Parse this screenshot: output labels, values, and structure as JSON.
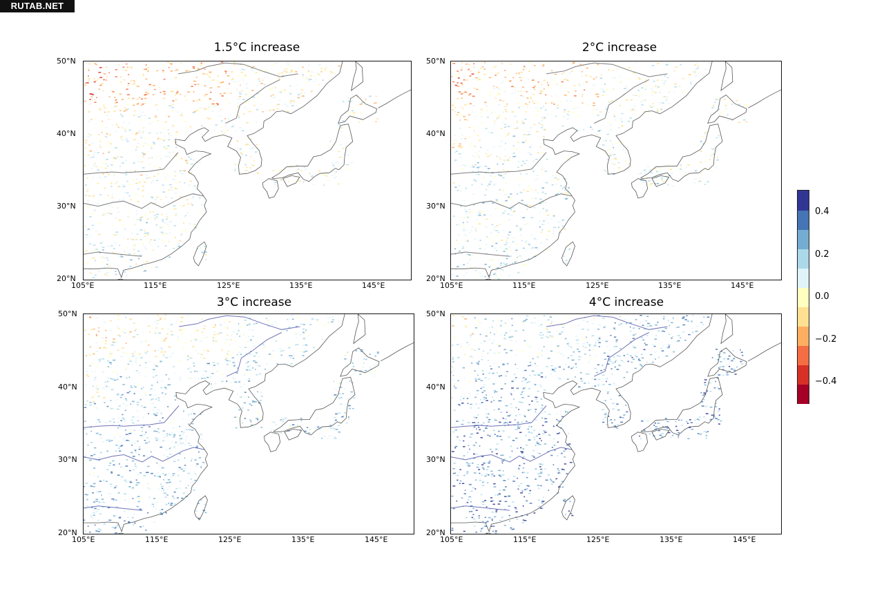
{
  "watermark": "RUTAB.NET",
  "panels": [
    {
      "title": "1.5°C increase",
      "intensity": 1.5
    },
    {
      "title": "2°C increase",
      "intensity": 2
    },
    {
      "title": "3°C increase",
      "intensity": 3
    },
    {
      "title": "4°C increase",
      "intensity": 4
    }
  ],
  "axes": {
    "lon_labels": [
      "105°E",
      "115°E",
      "125°E",
      "135°E",
      "145°E"
    ],
    "lon_values": [
      105,
      115,
      125,
      135,
      145
    ],
    "lat_labels": [
      "50°N",
      "40°N",
      "30°N",
      "20°N"
    ],
    "lat_values": [
      50,
      40,
      30,
      20
    ],
    "lon_range": [
      105,
      150
    ],
    "lat_range": [
      20,
      50
    ]
  },
  "colorbar": {
    "labels": [
      "0.4",
      "0.2",
      "0.0",
      "−0.2",
      "−0.4"
    ],
    "label_values": [
      0.4,
      0.2,
      0.0,
      -0.2,
      -0.4
    ],
    "range": [
      -0.5,
      0.5
    ],
    "colors": [
      "#a50026",
      "#d73027",
      "#f46d43",
      "#fdae61",
      "#fee090",
      "#ffffbf",
      "#e0f3f8",
      "#abd9e9",
      "#74add1",
      "#4575b4",
      "#313695"
    ]
  }
}
